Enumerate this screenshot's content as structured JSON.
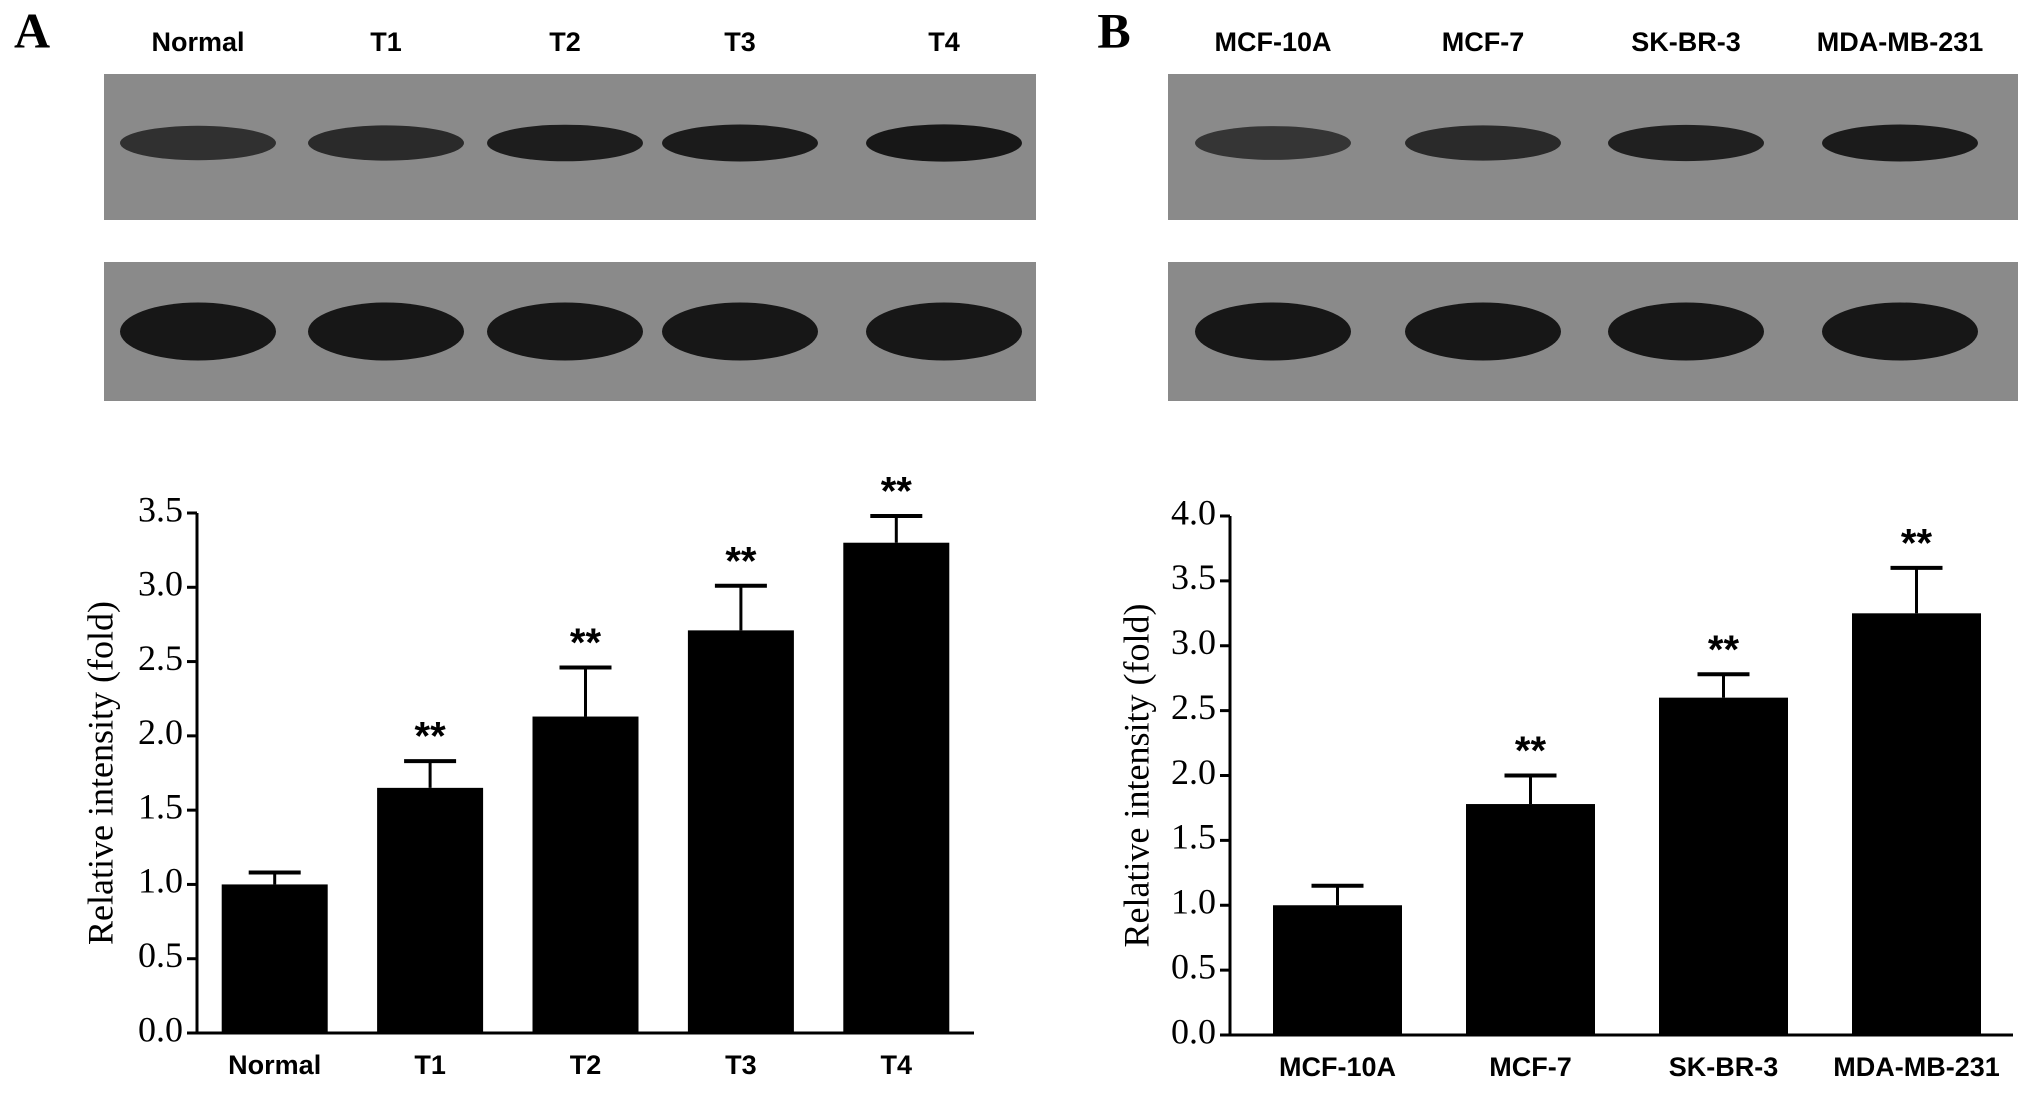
{
  "chart_data": [
    {
      "type": "bar",
      "panel": "A",
      "blot_labels": [
        "Normal",
        "T1",
        "T2",
        "T3",
        "T4"
      ],
      "categories": [
        "Normal",
        "T1",
        "T2",
        "T3",
        "T4"
      ],
      "values": [
        1.0,
        1.65,
        2.13,
        2.71,
        3.3
      ],
      "errors": [
        0.08,
        0.18,
        0.33,
        0.3,
        0.18
      ],
      "annotations": [
        null,
        "**",
        "**",
        "**",
        "**"
      ],
      "color": "#000000",
      "y_label": "Relative intensity (fold)",
      "ylim": [
        0,
        3.5
      ],
      "yticks": [
        {
          "value": 0,
          "label": "0.0"
        },
        0.5,
        {
          "value": 1,
          "label": "1.0"
        },
        1.5,
        {
          "value": 2,
          "label": "2.0"
        },
        2.5,
        {
          "value": 3,
          "label": "3.0"
        },
        3.5
      ]
    },
    {
      "type": "bar",
      "panel": "B",
      "blot_labels": [
        "MCF-10A",
        "MCF-7",
        "SK-BR-3",
        "MDA-MB-231"
      ],
      "categories": [
        "MCF-10A",
        "MCF-7",
        "SK-BR-3",
        "MDA-MB-231"
      ],
      "values": [
        1.0,
        1.78,
        2.6,
        3.25
      ],
      "errors": [
        0.15,
        0.22,
        0.18,
        0.35
      ],
      "annotations": [
        null,
        "**",
        "**",
        "**"
      ],
      "color": "#000000",
      "y_label": "Relative intensity (fold)",
      "ylim": [
        0,
        4
      ],
      "yticks": [
        {
          "value": 0,
          "label": "0.0"
        },
        0.5,
        {
          "value": 1,
          "label": "1.0"
        },
        1.5,
        {
          "value": 2,
          "label": "2.0"
        },
        2.5,
        {
          "value": 3,
          "label": "3.0"
        },
        3.5,
        {
          "value": 4,
          "label": "4.0"
        }
      ]
    }
  ]
}
